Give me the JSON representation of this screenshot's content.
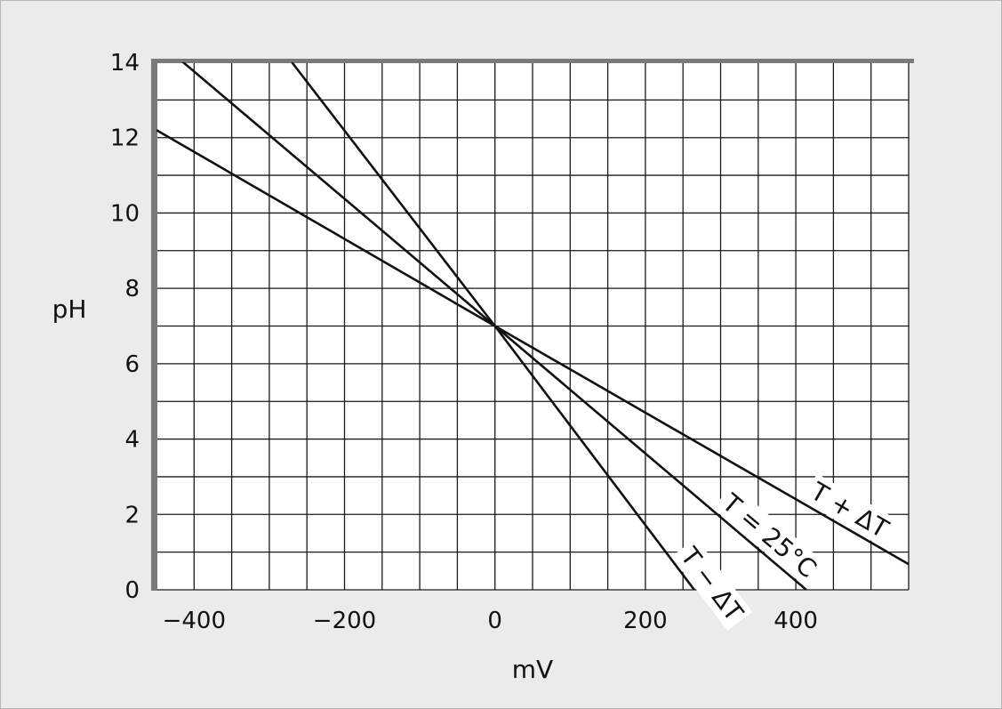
{
  "chart_data": {
    "type": "line",
    "xlabel": "mV",
    "ylabel": "pH",
    "xlim": [
      -450,
      550
    ],
    "ylim": [
      0,
      14
    ],
    "grid": true,
    "x_ticks": [
      -400,
      -200,
      0,
      200,
      400
    ],
    "x_tick_labels": [
      "−400",
      "−200",
      "0",
      "200",
      "400"
    ],
    "y_ticks": [
      0,
      2,
      4,
      6,
      8,
      10,
      12,
      14
    ],
    "y_tick_labels": [
      "0",
      "2",
      "4",
      "6",
      "8",
      "10",
      "12",
      "14"
    ],
    "series": [
      {
        "name": "T − ΔT",
        "label_at_x": 270,
        "points": [
          [
            -270,
            14
          ],
          [
            0,
            7
          ],
          [
            265,
            0
          ]
        ]
      },
      {
        "name": "T = 25°C",
        "label_at_x": 350,
        "points": [
          [
            -450,
            14.6
          ],
          [
            0,
            7
          ],
          [
            414,
            0
          ]
        ]
      },
      {
        "name": "T + ΔT",
        "label_at_x": 460,
        "points": [
          [
            -450,
            12.2
          ],
          [
            0,
            7
          ],
          [
            550,
            0.68
          ]
        ]
      }
    ]
  }
}
